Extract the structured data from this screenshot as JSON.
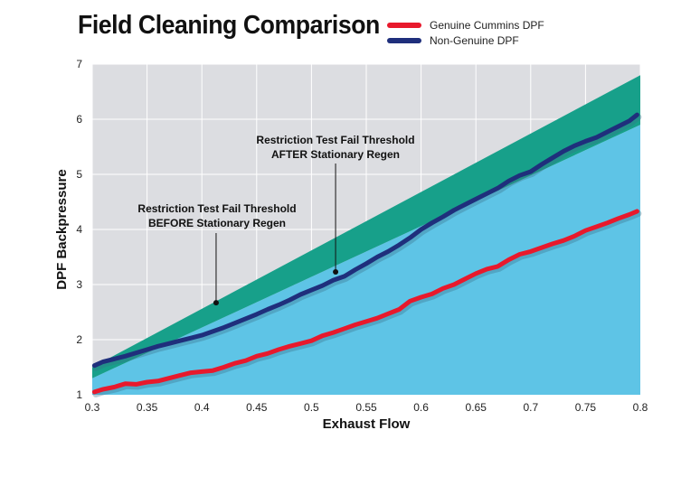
{
  "chart_data": {
    "type": "line",
    "title": "Field Cleaning Comparison",
    "xlabel": "Exhaust Flow",
    "ylabel": "DPF Backpressure",
    "xlim": [
      0.3,
      0.8
    ],
    "ylim": [
      1,
      7
    ],
    "x_ticks": [
      "0.3",
      "0.35",
      "0.4",
      "0.45",
      "0.5",
      "0.55",
      "0.6",
      "0.65",
      "0.7",
      "0.75",
      "0.8"
    ],
    "y_ticks": [
      "1",
      "2",
      "3",
      "4",
      "5",
      "6",
      "7"
    ],
    "grid": true,
    "legend_position": "top-right",
    "bands": [
      {
        "role": "below-after-threshold",
        "color": "#5ec4e6",
        "lower": [
          [
            0.3,
            1.0
          ],
          [
            0.8,
            1.0
          ]
        ],
        "upper": [
          [
            0.3,
            1.3
          ],
          [
            0.8,
            5.9
          ]
        ]
      },
      {
        "role": "between-thresholds",
        "color": "#17a08a",
        "lower": [
          [
            0.3,
            1.3
          ],
          [
            0.8,
            5.9
          ]
        ],
        "upper": [
          [
            0.3,
            1.5
          ],
          [
            0.8,
            6.8
          ]
        ]
      }
    ],
    "series": [
      {
        "name": "Genuine Cummins DPF",
        "color": "#e8192c",
        "x": [
          0.302,
          0.31,
          0.32,
          0.33,
          0.34,
          0.35,
          0.36,
          0.37,
          0.38,
          0.39,
          0.4,
          0.41,
          0.42,
          0.43,
          0.44,
          0.45,
          0.46,
          0.47,
          0.48,
          0.49,
          0.5,
          0.51,
          0.52,
          0.53,
          0.54,
          0.55,
          0.56,
          0.57,
          0.58,
          0.59,
          0.6,
          0.61,
          0.62,
          0.63,
          0.64,
          0.65,
          0.66,
          0.67,
          0.68,
          0.69,
          0.7,
          0.71,
          0.72,
          0.73,
          0.74,
          0.75,
          0.76,
          0.77,
          0.78,
          0.79,
          0.797
        ],
        "values": [
          1.05,
          1.1,
          1.14,
          1.2,
          1.19,
          1.23,
          1.25,
          1.3,
          1.35,
          1.4,
          1.42,
          1.44,
          1.5,
          1.57,
          1.62,
          1.7,
          1.75,
          1.82,
          1.88,
          1.93,
          1.98,
          2.07,
          2.13,
          2.2,
          2.27,
          2.33,
          2.39,
          2.47,
          2.55,
          2.7,
          2.77,
          2.83,
          2.93,
          3.0,
          3.1,
          3.2,
          3.28,
          3.33,
          3.45,
          3.55,
          3.6,
          3.67,
          3.74,
          3.8,
          3.88,
          3.98,
          4.05,
          4.12,
          4.2,
          4.27,
          4.33
        ]
      },
      {
        "name": "Non-Genuine DPF",
        "color": "#1f2f7c",
        "x": [
          0.302,
          0.31,
          0.32,
          0.33,
          0.34,
          0.35,
          0.36,
          0.37,
          0.38,
          0.39,
          0.4,
          0.41,
          0.42,
          0.43,
          0.44,
          0.45,
          0.46,
          0.47,
          0.48,
          0.49,
          0.5,
          0.51,
          0.52,
          0.53,
          0.54,
          0.55,
          0.56,
          0.57,
          0.58,
          0.59,
          0.6,
          0.61,
          0.62,
          0.63,
          0.64,
          0.65,
          0.66,
          0.67,
          0.68,
          0.69,
          0.7,
          0.71,
          0.72,
          0.73,
          0.74,
          0.75,
          0.76,
          0.77,
          0.78,
          0.79,
          0.797
        ],
        "values": [
          1.53,
          1.6,
          1.65,
          1.7,
          1.76,
          1.82,
          1.88,
          1.93,
          1.98,
          2.03,
          2.08,
          2.15,
          2.22,
          2.3,
          2.38,
          2.46,
          2.55,
          2.63,
          2.72,
          2.82,
          2.9,
          2.98,
          3.08,
          3.15,
          3.27,
          3.38,
          3.5,
          3.6,
          3.72,
          3.85,
          4.0,
          4.12,
          4.23,
          4.35,
          4.45,
          4.55,
          4.65,
          4.75,
          4.88,
          4.98,
          5.05,
          5.18,
          5.3,
          5.42,
          5.52,
          5.6,
          5.67,
          5.77,
          5.87,
          5.97,
          6.08
        ]
      }
    ],
    "annotations": [
      {
        "lines": [
          "Restriction Test Fail Threshold",
          "AFTER Stationary Regen"
        ],
        "point": [
          0.522,
          3.23
        ]
      },
      {
        "lines": [
          "Restriction Test Fail Threshold",
          "BEFORE Stationary Regen"
        ],
        "point": [
          0.413,
          2.67
        ]
      }
    ]
  }
}
